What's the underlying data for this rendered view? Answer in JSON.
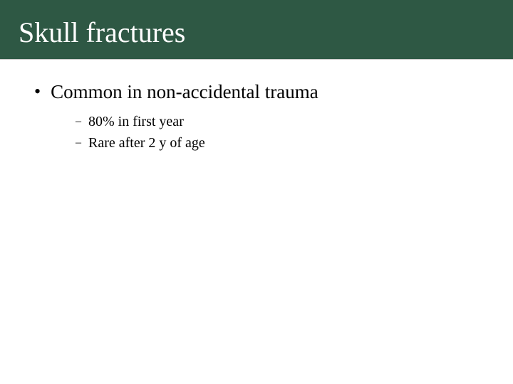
{
  "slide": {
    "title": "Skull fractures",
    "title_bar_color": "#2e5844",
    "title_text_color": "#ffffff",
    "title_fontsize": 40,
    "background_color": "#ffffff",
    "body_text_color": "#000000",
    "bullets": [
      {
        "text": "Common in non-accidental trauma",
        "fontsize": 27,
        "marker": "•",
        "sub": [
          {
            "text": "80% in first year",
            "fontsize": 20,
            "marker": "–"
          },
          {
            "text": "Rare after 2 y of age",
            "fontsize": 20,
            "marker": "–"
          }
        ]
      }
    ]
  }
}
